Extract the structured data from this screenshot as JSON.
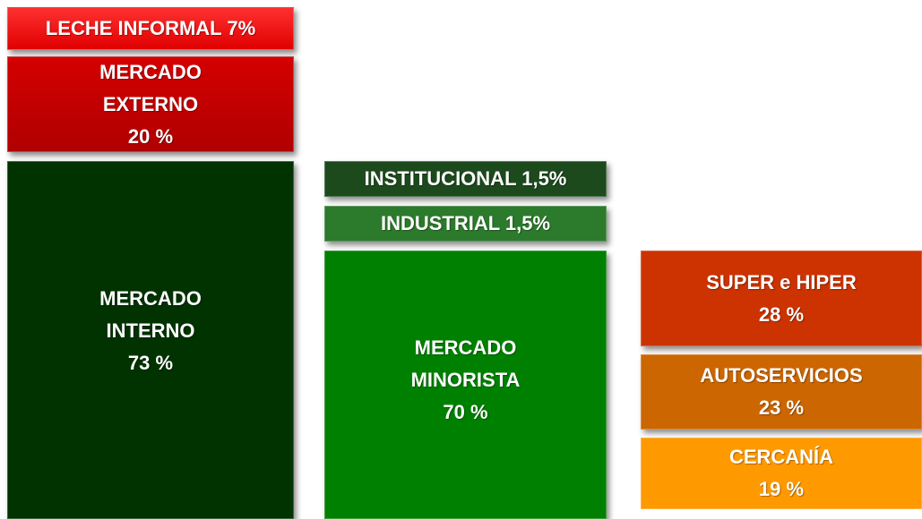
{
  "boxes": [
    {
      "lines": [
        "LECHE INFORMAL 7%"
      ]
    },
    {
      "lines": [
        "MERCADO",
        "EXTERNO",
        "20 %"
      ]
    },
    {
      "lines": [
        "MERCADO",
        "INTERNO",
        "73 %"
      ]
    },
    {
      "lines": [
        "INSTITUCIONAL 1,5%"
      ]
    },
    {
      "lines": [
        "INDUSTRIAL 1,5%"
      ]
    },
    {
      "lines": [
        "MERCADO",
        "MINORISTA",
        "70 %"
      ]
    },
    {
      "lines": [
        "SUPER e HIPER",
        "28 %"
      ]
    },
    {
      "lines": [
        "AUTOSERVICIOS",
        "23 %"
      ]
    },
    {
      "lines": [
        "CERCANÍA",
        "19 %"
      ]
    }
  ]
}
